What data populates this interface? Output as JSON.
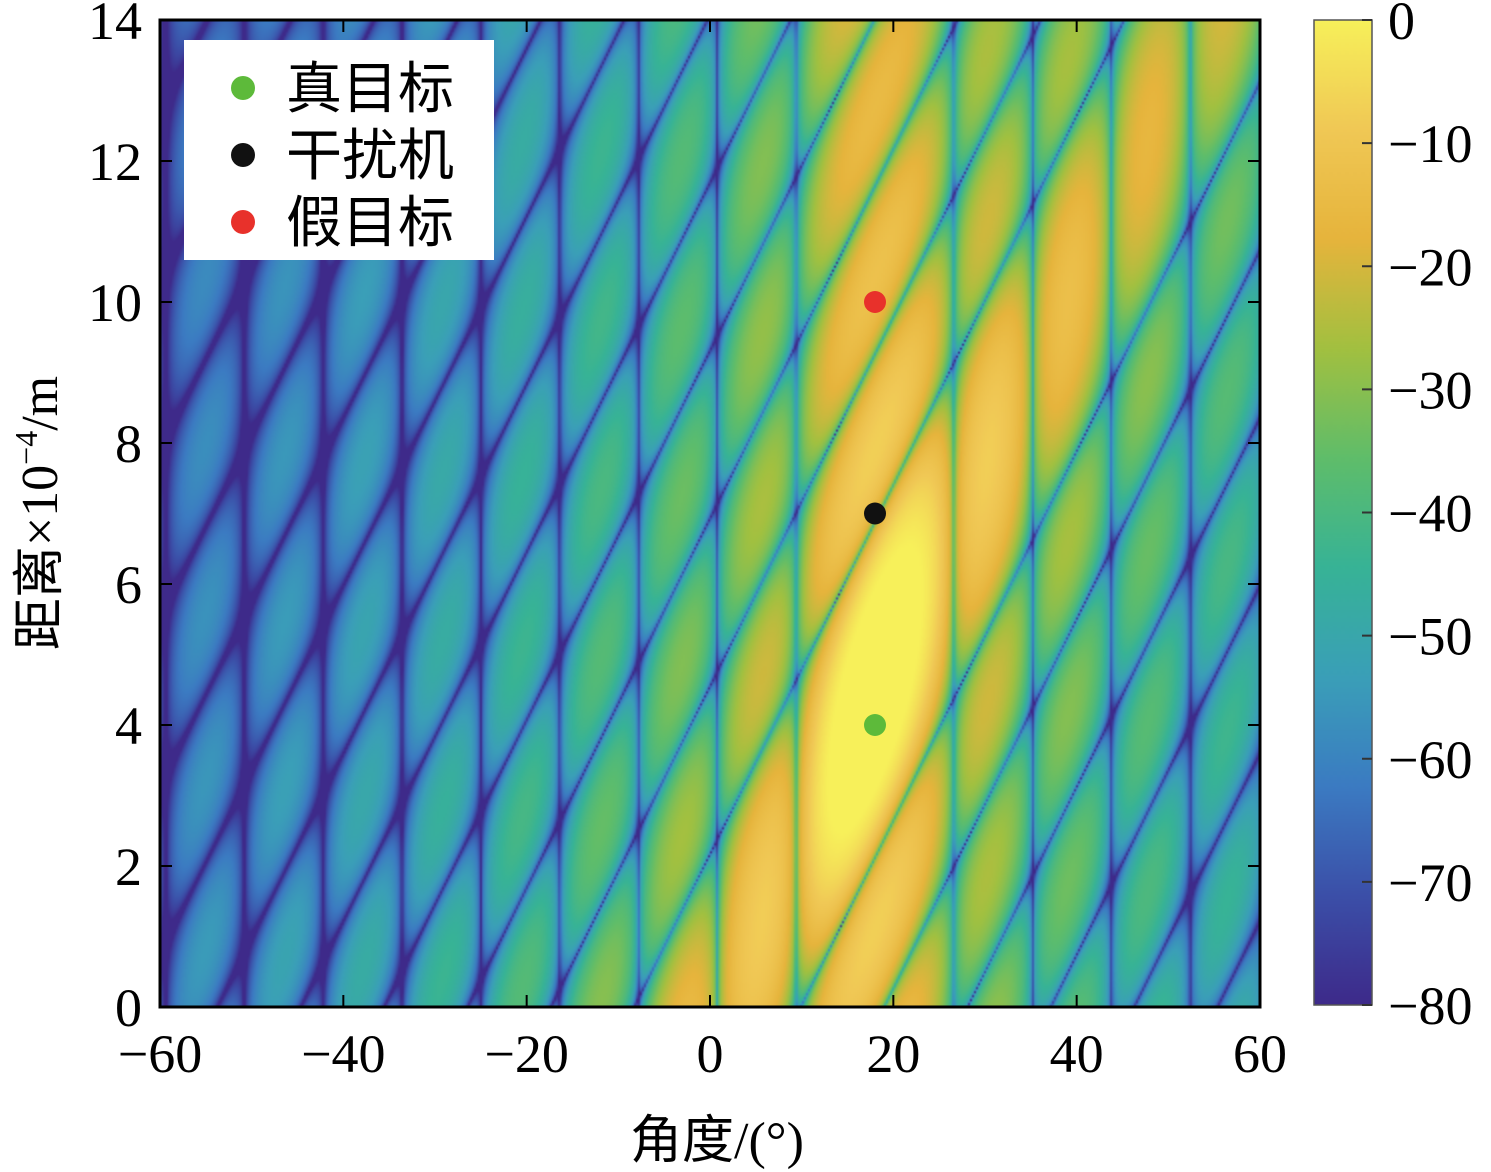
{
  "chart_data": {
    "type": "heatmap",
    "xlabel": "角度/(°)",
    "ylabel_prefix": "距离×10",
    "ylabel_exponent": "−4",
    "ylabel_unit": "/m",
    "xlim": [
      -60,
      60
    ],
    "ylim": [
      0,
      14
    ],
    "x_ticks": [
      "−60",
      "−40",
      "−20",
      "0",
      "20",
      "40",
      "60"
    ],
    "y_ticks": [
      "0",
      "2",
      "4",
      "6",
      "8",
      "10",
      "12",
      "14"
    ],
    "colorbar": {
      "range": [
        -80,
        0
      ],
      "ticks": [
        "0",
        "−10",
        "−20",
        "−30",
        "−40",
        "−50",
        "−60",
        "−70",
        "−80"
      ],
      "colormap": "parula",
      "stops": [
        "#3e2a8a",
        "#3b4fa8",
        "#3b7bc2",
        "#3a9fb8",
        "#37b396",
        "#5fbd6a",
        "#a2c040",
        "#e6b43c",
        "#f0c855",
        "#f7f05a"
      ]
    },
    "points": [
      {
        "label": "真目标",
        "x": 18,
        "y": 4.0,
        "color": "#5dba3a"
      },
      {
        "label": "干扰机",
        "x": 18,
        "y": 7.0,
        "color": "#111111"
      },
      {
        "label": "假目标",
        "x": 18,
        "y": 10.0,
        "color": "#e8312b"
      }
    ],
    "legend": {
      "placement": "top-left",
      "entries": [
        {
          "label": "真目标",
          "color": "#5dba3a"
        },
        {
          "label": "干扰机",
          "color": "#111111"
        },
        {
          "label": "假目标",
          "color": "#e8312b"
        }
      ]
    }
  }
}
